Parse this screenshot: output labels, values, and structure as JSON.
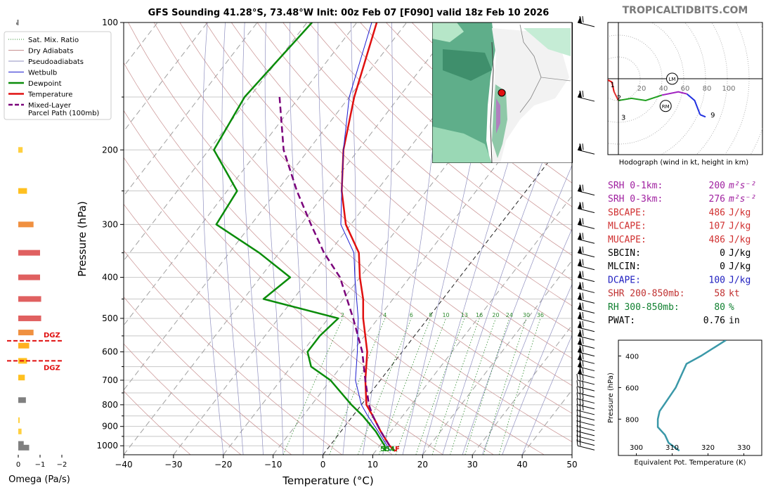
{
  "header": {
    "title": "GFS Sounding 41.28°S, 73.48°W Init: 00z Feb 07 [F090] valid 18z Feb 10 2026",
    "watermark": "TROPICALTIDBITS.COM"
  },
  "legend": {
    "items": [
      {
        "label": "Sat. Mix. Ratio",
        "color": "#2e8b2e",
        "style": "dotted"
      },
      {
        "label": "Dry Adiabats",
        "color": "#c89090",
        "style": "solid"
      },
      {
        "label": "Pseudoadiabats",
        "color": "#9090c0",
        "style": "solid"
      },
      {
        "label": "Wetbulb",
        "color": "#1c1cd0",
        "style": "solid"
      },
      {
        "label": "Dewpoint",
        "color": "#0a8c0a",
        "style": "solid"
      },
      {
        "label": "Temperature",
        "color": "#e01010",
        "style": "solid"
      },
      {
        "label": "Mixed-Layer",
        "label2": "Parcel Path (100mb)",
        "color": "#7a007a",
        "style": "dashed"
      }
    ]
  },
  "chart_data": [
    {
      "type": "line",
      "name": "skewt",
      "xlabel": "Temperature (°C)",
      "ylabel": "Pressure (hPa)",
      "xlim": [
        -40,
        50
      ],
      "ylim": [
        1050,
        100
      ],
      "x_ticks": [
        "−40",
        "−30",
        "−20",
        "−10",
        "0",
        "10",
        "20",
        "30",
        "40",
        "50"
      ],
      "y_ticks": [
        "100",
        "200",
        "300",
        "400",
        "500",
        "600",
        "700",
        "800",
        "900",
        "1000"
      ],
      "mixing_ratio_labels": [
        "2",
        "4",
        "6",
        "8",
        "10",
        "13",
        "16",
        "20",
        "24",
        "30",
        "36"
      ],
      "lcl_label": "554F",
      "dgz_label": "DGZ",
      "series": [
        {
          "name": "Temperature",
          "color": "#e01010",
          "p": [
            1030,
            1000,
            925,
            850,
            800,
            700,
            600,
            500,
            450,
            400,
            350,
            300,
            250,
            200,
            150,
            100
          ],
          "t": [
            14,
            12,
            8,
            4,
            1,
            -3,
            -7,
            -13,
            -16,
            -20,
            -24,
            -31,
            -37,
            -43,
            -49,
            -56
          ]
        },
        {
          "name": "Dewpoint",
          "color": "#0a8c0a",
          "p": [
            1030,
            1000,
            925,
            850,
            800,
            700,
            650,
            600,
            550,
            500,
            450,
            400,
            350,
            300,
            250,
            200,
            150,
            100
          ],
          "t": [
            12,
            11,
            7,
            2,
            -2,
            -10,
            -16,
            -19,
            -19,
            -18,
            -36,
            -34,
            -44,
            -57,
            -58,
            -69,
            -71,
            -69
          ]
        },
        {
          "name": "Wetbulb",
          "color": "#1c1cd0",
          "p": [
            1030,
            1000,
            925,
            850,
            800,
            700,
            600,
            500,
            400,
            350,
            300,
            250,
            200,
            150,
            100
          ],
          "t": [
            13,
            11.5,
            7.5,
            3,
            0,
            -5,
            -9,
            -14,
            -21,
            -25,
            -32,
            -37,
            -43,
            -50,
            -57
          ]
        },
        {
          "name": "Mixed-Layer Parcel Path (100mb)",
          "color": "#7a007a",
          "p": [
            1000,
            925,
            850,
            800,
            700,
            600,
            500,
            400,
            350,
            300,
            250,
            200,
            150
          ],
          "t": [
            12,
            8,
            4,
            1.5,
            -3,
            -8,
            -15,
            -24,
            -31,
            -38,
            -46,
            -55,
            -64
          ]
        }
      ]
    },
    {
      "type": "bar",
      "name": "omega",
      "xlabel": "Omega (Pa/s)",
      "x_ticks": [
        "0",
        "−1",
        "−2"
      ],
      "bars": [
        {
          "p": 1010,
          "v": -0.5,
          "color": "#808080"
        },
        {
          "p": 990,
          "v": -0.25,
          "color": "#808080"
        },
        {
          "p": 925,
          "v": -0.15,
          "color": "#ffd040"
        },
        {
          "p": 870,
          "v": -0.05,
          "color": "#ffd040"
        },
        {
          "p": 780,
          "v": -0.35,
          "color": "#808080"
        },
        {
          "p": 690,
          "v": -0.3,
          "color": "#ffc020"
        },
        {
          "p": 630,
          "v": -0.4,
          "color": "#ffc020"
        },
        {
          "p": 580,
          "v": -0.5,
          "color": "#ffb020"
        },
        {
          "p": 540,
          "v": -0.7,
          "color": "#f09040"
        },
        {
          "p": 500,
          "v": -1.05,
          "color": "#e06060"
        },
        {
          "p": 450,
          "v": -1.05,
          "color": "#e06060"
        },
        {
          "p": 400,
          "v": -1.0,
          "color": "#e06060"
        },
        {
          "p": 350,
          "v": -1.0,
          "color": "#e06060"
        },
        {
          "p": 300,
          "v": -0.7,
          "color": "#f09040"
        },
        {
          "p": 250,
          "v": -0.4,
          "color": "#ffc020"
        },
        {
          "p": 200,
          "v": -0.2,
          "color": "#ffd040"
        },
        {
          "p": 100,
          "v": 0.05,
          "color": "#808080"
        }
      ],
      "dgz_p": [
        565,
        630
      ]
    },
    {
      "type": "line",
      "name": "hodograph",
      "caption": "Hodograph (wind in kt, height in km)",
      "ring_labels": [
        "20",
        "40",
        "60",
        "80",
        "100"
      ],
      "markers": [
        "LM",
        "RM"
      ],
      "segments": [
        {
          "color": "#e01010",
          "points": [
            [
              -25,
              0
            ],
            [
              -18,
              2
            ],
            [
              -12,
              0
            ]
          ]
        },
        {
          "color": "#e01010",
          "points": [
            [
              -12,
              0
            ],
            [
              -6,
              -3
            ],
            [
              -4,
              -12
            ]
          ]
        },
        {
          "color": "#e03030",
          "points": [
            [
              -4,
              -12
            ],
            [
              0,
              -20
            ]
          ]
        },
        {
          "color": "#20a020",
          "points": [
            [
              0,
              -20
            ],
            [
              12,
              -18
            ],
            [
              25,
              -20
            ],
            [
              40,
              -15
            ]
          ]
        },
        {
          "color": "#a020c0",
          "points": [
            [
              40,
              -15
            ],
            [
              55,
              -12
            ],
            [
              63,
              -14
            ]
          ]
        },
        {
          "color": "#2030e0",
          "points": [
            [
              63,
              -14
            ],
            [
              70,
              -20
            ],
            [
              75,
              -33
            ]
          ]
        },
        {
          "color": "#2030e0",
          "points": [
            [
              75,
              -33
            ],
            [
              80,
              -35
            ]
          ]
        }
      ],
      "labels": [
        {
          "t": "1",
          "u": -10,
          "v": -5
        },
        {
          "t": "2",
          "u": -4,
          "v": -17
        },
        {
          "t": "3",
          "u": 0,
          "v": -35
        },
        {
          "t": "6",
          "u": 40,
          "v": -25
        },
        {
          "t": "9",
          "u": 82,
          "v": -33
        }
      ]
    },
    {
      "type": "line",
      "name": "theta-e",
      "xlabel": "Equivalent Pot. Temperature (K)",
      "ylabel": "Pressure (hPa)",
      "x_ticks": [
        "300",
        "310",
        "320",
        "330"
      ],
      "y_ticks": [
        "400",
        "600",
        "800"
      ],
      "xlim": [
        295,
        335
      ],
      "ylim": [
        1030,
        300
      ],
      "theta_e": [
        312,
        309,
        308,
        306,
        306,
        306.5,
        308,
        311,
        313,
        314,
        318,
        325
      ],
      "p": [
        1000,
        950,
        900,
        850,
        800,
        750,
        700,
        600,
        500,
        450,
        400,
        300
      ]
    }
  ],
  "indices": [
    {
      "name": "SRH 0-1km:",
      "value": "200",
      "unit": "m²s⁻²",
      "color": "#a020a0"
    },
    {
      "name": "SRH 0-3km:",
      "value": "276",
      "unit": "m²s⁻²",
      "color": "#a020a0"
    },
    {
      "name": "SBCAPE:",
      "value": "486",
      "unit": "J/kg",
      "color": "#d03030"
    },
    {
      "name": "MLCAPE:",
      "value": "107",
      "unit": "J/kg",
      "color": "#d03030"
    },
    {
      "name": "MUCAPE:",
      "value": "486",
      "unit": "J/kg",
      "color": "#d03030"
    },
    {
      "name": "SBCIN:",
      "value": "0",
      "unit": "J/kg",
      "color": "#000000"
    },
    {
      "name": "MLCIN:",
      "value": "0",
      "unit": "J/kg",
      "color": "#000000"
    },
    {
      "name": "DCAPE:",
      "value": "100",
      "unit": "J/kg",
      "color": "#2020c0"
    },
    {
      "name": "SHR 200-850mb:",
      "value": "58",
      "unit": "kt",
      "color": "#c03030"
    },
    {
      "name": "RH 300-850mb:",
      "value": "80",
      "unit": "%",
      "color": "#108030"
    },
    {
      "name": "PWAT:",
      "value": "0.76",
      "unit": "in",
      "color": "#000000"
    }
  ]
}
